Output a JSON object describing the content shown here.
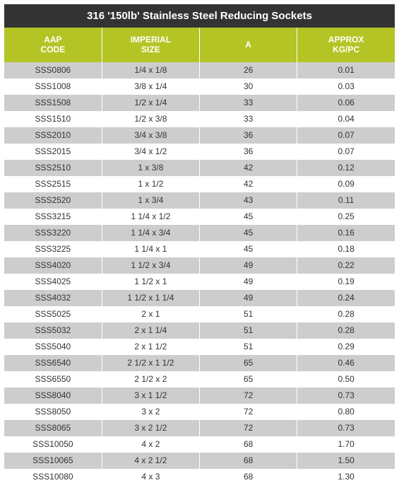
{
  "title": "316 '150lb' Stainless Steel  Reducing Sockets",
  "colors": {
    "title_bg": "#333333",
    "title_text": "#ffffff",
    "header_bg": "#b4c425",
    "header_text": "#ffffff",
    "row_odd_bg": "#cdcdcd",
    "row_even_bg": "#ffffff",
    "cell_text": "#333333"
  },
  "columns": [
    {
      "label_line1": "AAP",
      "label_line2": "CODE",
      "width": "25%"
    },
    {
      "label_line1": "IMPERIAL",
      "label_line2": "SIZE",
      "width": "25%"
    },
    {
      "label_line1": "A",
      "label_line2": "",
      "width": "25%"
    },
    {
      "label_line1": "APPROX",
      "label_line2": "KG/PC",
      "width": "25%"
    }
  ],
  "rows": [
    [
      "SSS0806",
      "1/4 x 1/8",
      "26",
      "0.01"
    ],
    [
      "SSS1008",
      "3/8 x 1/4",
      "30",
      "0.03"
    ],
    [
      "SSS1508",
      "1/2 x 1/4",
      "33",
      "0.06"
    ],
    [
      "SSS1510",
      "1/2 x 3/8",
      "33",
      "0.04"
    ],
    [
      "SSS2010",
      "3/4 x 3/8",
      "36",
      "0.07"
    ],
    [
      "SSS2015",
      "3/4 x 1/2",
      "36",
      "0.07"
    ],
    [
      "SSS2510",
      "1 x 3/8",
      "42",
      "0.12"
    ],
    [
      "SSS2515",
      "1 x 1/2",
      "42",
      "0.09"
    ],
    [
      "SSS2520",
      "1 x 3/4",
      "43",
      "0.11"
    ],
    [
      "SSS3215",
      "1 1/4 x 1/2",
      "45",
      "0.25"
    ],
    [
      "SSS3220",
      "1 1/4 x 3/4",
      "45",
      "0.16"
    ],
    [
      "SSS3225",
      "1 1/4 x 1",
      "45",
      "0.18"
    ],
    [
      "SSS4020",
      "1 1/2 x 3/4",
      "49",
      "0.22"
    ],
    [
      "SSS4025",
      "1 1/2 x 1",
      "49",
      "0.19"
    ],
    [
      "SSS4032",
      "1 1/2 x 1 1/4",
      "49",
      "0.24"
    ],
    [
      "SSS5025",
      "2 x 1",
      "51",
      "0.28"
    ],
    [
      "SSS5032",
      "2 x 1 1/4",
      "51",
      "0.28"
    ],
    [
      "SSS5040",
      "2 x 1 1/2",
      "51",
      "0.29"
    ],
    [
      "SSS6540",
      "2 1/2 x 1 1/2",
      "65",
      "0.46"
    ],
    [
      "SSS6550",
      "2 1/2 x 2",
      "65",
      "0.50"
    ],
    [
      "SSS8040",
      "3 x 1 1/2",
      "72",
      "0.73"
    ],
    [
      "SSS8050",
      "3 x 2",
      "72",
      "0.80"
    ],
    [
      "SSS8065",
      "3 x 2 1/2",
      "72",
      "0.73"
    ],
    [
      "SSS10050",
      "4 x 2",
      "68",
      "1.70"
    ],
    [
      "SSS10065",
      "4 x 2 1/2",
      "68",
      "1.50"
    ],
    [
      "SSS10080",
      "4 x 3",
      "68",
      "1.30"
    ]
  ]
}
